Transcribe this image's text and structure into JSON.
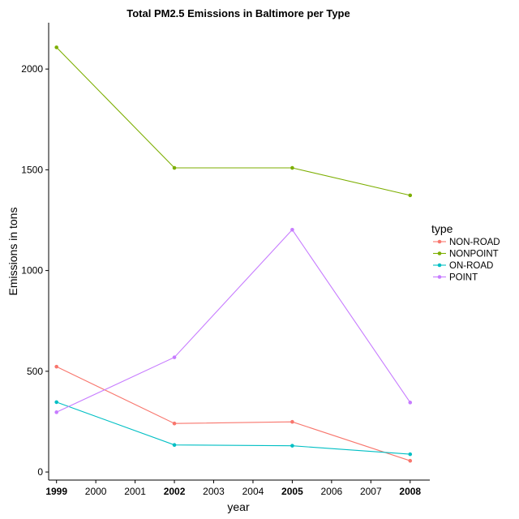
{
  "chart_data": {
    "type": "line",
    "title": "Total PM2.5 Emissions in Baltimore per Type",
    "xlabel": "year",
    "ylabel": "Emissions in tons",
    "x_ticks": [
      "1999",
      "2000",
      "2001",
      "2002",
      "2003",
      "2004",
      "2005",
      "2006",
      "2007",
      "2008"
    ],
    "bold_x_ticks": [
      "1999",
      "2002",
      "2005",
      "2008"
    ],
    "y_ticks": [
      0,
      500,
      1000,
      1500,
      2000
    ],
    "xlim": [
      1998.8,
      2008.5
    ],
    "ylim": [
      -40,
      2230
    ],
    "grid": false,
    "legend_title": "type",
    "legend_position": "right",
    "x": [
      1999,
      2002,
      2005,
      2008
    ],
    "series": [
      {
        "name": "NON-ROAD",
        "color": "#F8766D",
        "values": [
          522.9,
          240.8,
          248.9,
          55.8
        ]
      },
      {
        "name": "NONPOINT",
        "color": "#7CAE00",
        "values": [
          2107.6,
          1509.5,
          1509.5,
          1373.2
        ]
      },
      {
        "name": "ON-ROAD",
        "color": "#00BFC4",
        "values": [
          346.8,
          134.3,
          130.4,
          88.3
        ]
      },
      {
        "name": "POINT",
        "color": "#C77CFF",
        "values": [
          296.8,
          569.3,
          1202.5,
          344.98
        ]
      }
    ]
  }
}
